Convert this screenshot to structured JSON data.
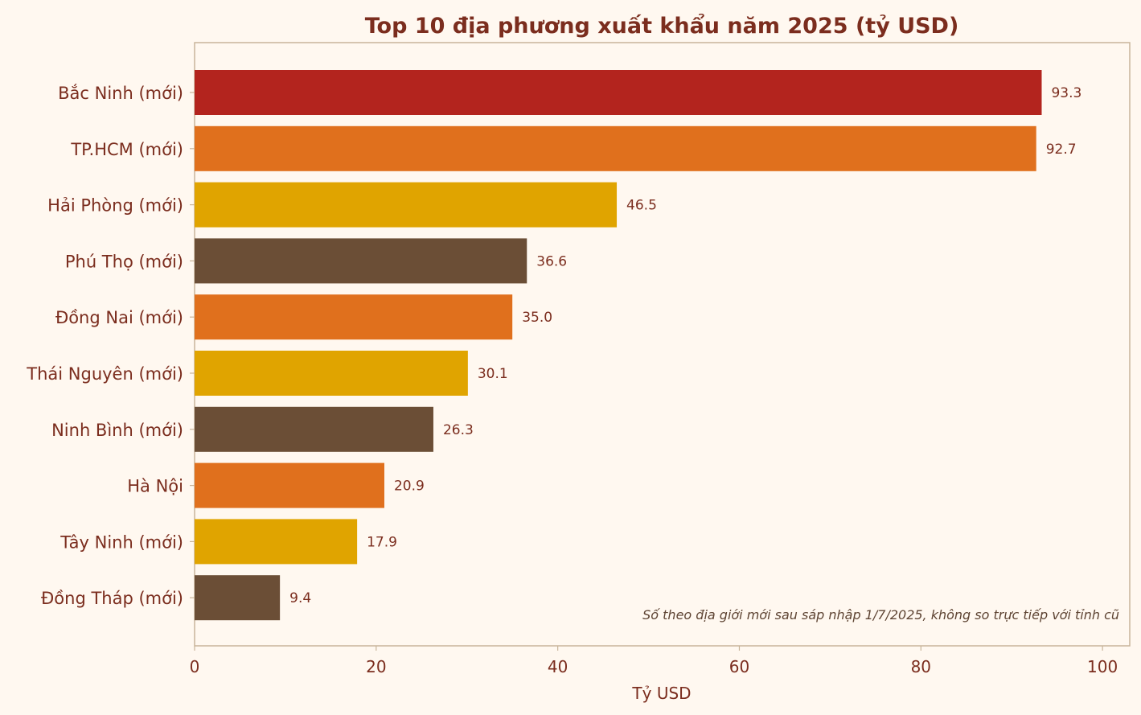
{
  "chart_data": {
    "type": "bar",
    "orientation": "horizontal",
    "title": "Top 10 địa phương xuất khẩu năm 2025 (tỷ USD)",
    "xlabel": "Tỷ USD",
    "ylabel": "",
    "xlim": [
      0,
      103
    ],
    "xticks": [
      0,
      20,
      40,
      60,
      80,
      100
    ],
    "grid": false,
    "categories": [
      "Bắc Ninh (mới)",
      "TP.HCM (mới)",
      "Hải Phòng (mới)",
      "Phú Thọ (mới)",
      "Đồng Nai (mới)",
      "Thái Nguyên (mới)",
      "Ninh Bình (mới)",
      "Hà Nội",
      "Tây Ninh (mới)",
      "Đồng Tháp (mới)"
    ],
    "values": [
      93.3,
      92.7,
      46.5,
      36.6,
      35.0,
      30.1,
      26.3,
      20.9,
      17.9,
      9.4
    ],
    "value_labels": [
      "93.3",
      "92.7",
      "46.5",
      "36.6",
      "35.0",
      "30.1",
      "26.3",
      "20.9",
      "17.9",
      "9.4"
    ],
    "colors": [
      "#b3241e",
      "#e0701d",
      "#e0a400",
      "#6b4e36",
      "#e0701d",
      "#e0a400",
      "#6b4e36",
      "#e0701d",
      "#e0a400",
      "#6b4e36"
    ],
    "annotation": "Số theo địa giới mới sau sáp nhập 1/7/2025, không so trực tiếp với tỉnh cũ"
  }
}
